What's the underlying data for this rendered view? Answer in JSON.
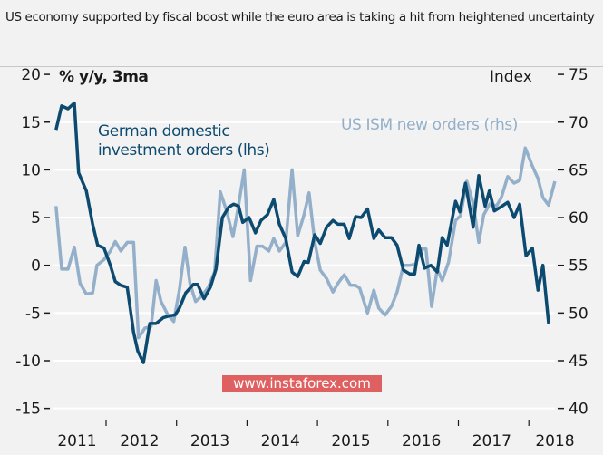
{
  "title": "US economy supported by fiscal boost while the euro area is taking a hit from heightened uncertainty",
  "watermark": "www.instaforex.com",
  "colors": {
    "german": "#0d4a70",
    "ism": "#93afc9",
    "background": "#f2f2f2",
    "grid": "#ffffff"
  },
  "chart_data": {
    "type": "line",
    "title": "US economy supported by fiscal boost while the euro area is taking a hit from heightened uncertainty",
    "ylabel_left": "% y/y, 3ma",
    "ylabel_right": "Index",
    "ylim_left": [
      -15,
      20
    ],
    "ylim_right": [
      40,
      75
    ],
    "yticks_left": [
      "20",
      "15",
      "10",
      "5",
      "0",
      "-5",
      "-10",
      "-15"
    ],
    "yticks_right": [
      "75",
      "70",
      "65",
      "60",
      "55",
      "50",
      "45",
      "40"
    ],
    "xlim": [
      2011.0,
      2018.5
    ],
    "xticks": [
      "2011",
      "2012",
      "2013",
      "2014",
      "2015",
      "2016",
      "2017",
      "2018"
    ],
    "grid": true,
    "series": [
      {
        "name": "German domestic investment orders (lhs)",
        "label_line1": "German domestic",
        "label_line2": "investment orders (lhs)",
        "axis": "left",
        "x": [
          2011.29,
          2011.37,
          2011.46,
          2011.55,
          2011.61,
          2011.72,
          2011.81,
          2011.88,
          2011.97,
          2012.06,
          2012.13,
          2012.21,
          2012.3,
          2012.39,
          2012.45,
          2012.53,
          2012.62,
          2012.71,
          2012.81,
          2012.9,
          2012.98,
          2013.04,
          2013.13,
          2013.24,
          2013.3,
          2013.39,
          2013.48,
          2013.56,
          2013.65,
          2013.74,
          2013.81,
          2013.88,
          2013.94,
          2014.03,
          2014.12,
          2014.2,
          2014.29,
          2014.38,
          2014.46,
          2014.55,
          2014.64,
          2014.72,
          2014.81,
          2014.87,
          2014.96,
          2015.04,
          2015.13,
          2015.22,
          2015.29,
          2015.38,
          2015.45,
          2015.54,
          2015.62,
          2015.71,
          2015.8,
          2015.87,
          2015.96,
          2016.05,
          2016.13,
          2016.22,
          2016.31,
          2016.38,
          2016.44,
          2016.52,
          2016.61,
          2016.7,
          2016.77,
          2016.84,
          2016.96,
          2017.02,
          2017.1,
          2017.21,
          2017.29,
          2017.38,
          2017.44,
          2017.51,
          2017.6,
          2017.7,
          2017.79,
          2017.87,
          2017.96,
          2018.05,
          2018.13,
          2018.2,
          2018.28
        ],
        "values": [
          14.2,
          16.7,
          16.4,
          17,
          9.7,
          7.8,
          4.3,
          2.1,
          1.8,
          0,
          -1.7,
          -2.1,
          -2.3,
          -7,
          -9,
          -10.2,
          -6.1,
          -6.1,
          -5.5,
          -5.3,
          -5.2,
          -4.5,
          -2.9,
          -2,
          -2,
          -3.5,
          -2.3,
          -0.4,
          5,
          6.1,
          6.4,
          6.2,
          4.5,
          5,
          3.4,
          4.7,
          5.3,
          6.9,
          4.3,
          2.8,
          -0.7,
          -1.2,
          0.4,
          0.3,
          3.2,
          2.3,
          4,
          4.7,
          4.3,
          4.3,
          2.8,
          5.1,
          5,
          5.9,
          2.8,
          3.7,
          2.9,
          2.9,
          2.1,
          -0.5,
          -0.9,
          -0.9,
          2.1,
          -0.3,
          0,
          -0.7,
          2.9,
          2.1,
          6.7,
          5.6,
          8.6,
          4,
          9.4,
          6.2,
          7.8,
          5.7,
          6.1,
          6.6,
          5,
          6.4,
          1,
          1.8,
          -2.6,
          0,
          -6.1
        ]
      },
      {
        "name": "US ISM new orders (rhs)",
        "axis": "right",
        "x": [
          2011.29,
          2011.37,
          2011.46,
          2011.55,
          2011.63,
          2011.72,
          2011.81,
          2011.87,
          2011.97,
          2012.06,
          2012.13,
          2012.21,
          2012.3,
          2012.39,
          2012.46,
          2012.55,
          2012.64,
          2012.71,
          2012.78,
          2012.87,
          2012.96,
          2013.04,
          2013.12,
          2013.19,
          2013.27,
          2013.36,
          2013.45,
          2013.54,
          2013.62,
          2013.71,
          2013.8,
          2013.88,
          2013.96,
          2014.05,
          2014.14,
          2014.22,
          2014.31,
          2014.38,
          2014.46,
          2014.55,
          2014.64,
          2014.72,
          2014.81,
          2014.88,
          2014.96,
          2015.04,
          2015.13,
          2015.22,
          2015.29,
          2015.38,
          2015.47,
          2015.54,
          2015.6,
          2015.71,
          2015.8,
          2015.87,
          2015.96,
          2016.05,
          2016.13,
          2016.22,
          2016.31,
          2016.39,
          2016.48,
          2016.54,
          2016.62,
          2016.7,
          2016.77,
          2016.86,
          2016.96,
          2017.03,
          2017.12,
          2017.21,
          2017.29,
          2017.36,
          2017.45,
          2017.54,
          2017.61,
          2017.7,
          2017.79,
          2017.87,
          2017.95,
          2018.05,
          2018.13,
          2018.2,
          2018.28,
          2018.37
        ],
        "values": [
          61.2,
          54.6,
          54.6,
          56.9,
          53.1,
          52,
          52.1,
          55,
          55.6,
          56.5,
          57.5,
          56.5,
          57.4,
          57.4,
          47.4,
          48.4,
          48.6,
          53.4,
          51.2,
          49.9,
          49.1,
          52.4,
          56.9,
          53.1,
          51.2,
          51.8,
          52.7,
          54.3,
          62.7,
          60.7,
          58,
          61.3,
          65,
          53.4,
          57,
          57,
          56.5,
          57.8,
          56.5,
          57.4,
          65,
          58.1,
          60.3,
          62.6,
          57.5,
          54.5,
          53.6,
          52.2,
          53.1,
          54,
          52.9,
          52.9,
          52.6,
          50,
          52.4,
          50.5,
          49.8,
          50.7,
          52.2,
          55,
          55,
          55.1,
          56.7,
          56.7,
          50.7,
          54.6,
          53.4,
          55.3,
          59.7,
          60.2,
          63.8,
          61.5,
          57.4,
          60.3,
          61.5,
          61.2,
          62.1,
          64.3,
          63.6,
          63.9,
          67.3,
          65.4,
          64.1,
          62.1,
          61.3,
          63.8
        ]
      }
    ]
  }
}
